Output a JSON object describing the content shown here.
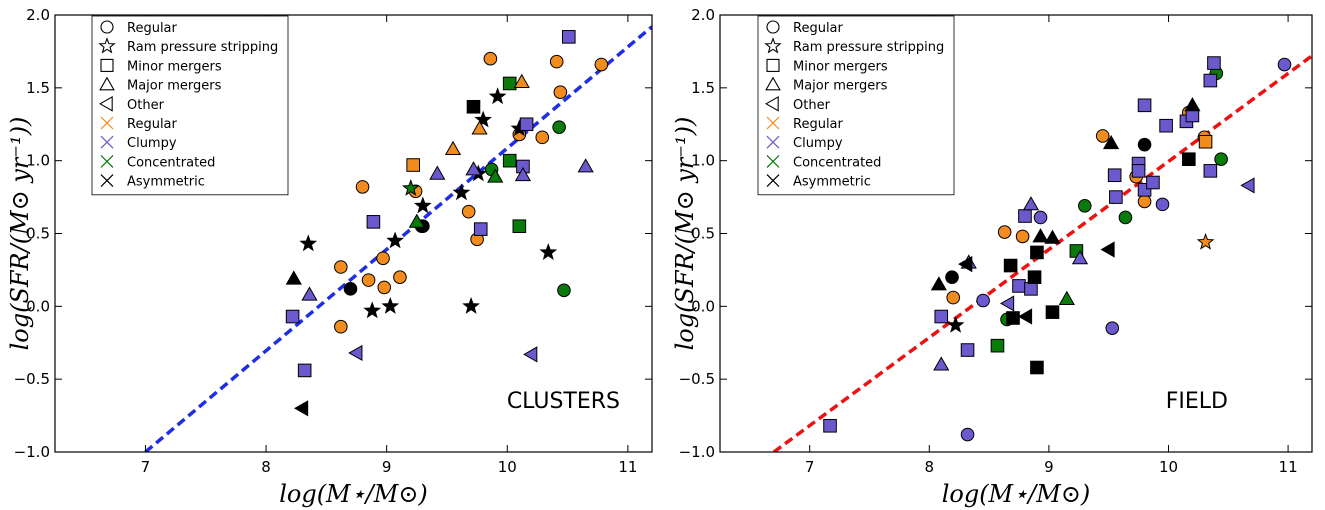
{
  "colors": {
    "Regular": "#f28c1e",
    "Clumpy": "#6a5acd",
    "Concentrated": "#0a7a0a",
    "Asymmetric": "#000000",
    "fit_clusters": "#1f2ee6",
    "fit_field": "#ee1111"
  },
  "chart_data": [
    {
      "type": "scatter",
      "panel_label": "CLUSTERS",
      "xlabel": "log(M⋆/M⊙)",
      "ylabel": "log(SFR/(M⊙ yr⁻¹))",
      "xlim": [
        6.25,
        11.2
      ],
      "ylim": [
        -1.0,
        2.0
      ],
      "xticks": [
        "7",
        "8",
        "9",
        "10",
        "11"
      ],
      "yticks": [
        "−1.0",
        "−0.5",
        "0.0",
        "0.5",
        "1.0",
        "1.5",
        "2.0"
      ],
      "grid": false,
      "legend": {
        "placement": "top-left",
        "entries": [
          {
            "label": "Regular",
            "marker": "circle",
            "color": "#000000"
          },
          {
            "label": "Ram pressure stripping",
            "marker": "star",
            "color": "#000000"
          },
          {
            "label": "Minor mergers",
            "marker": "square",
            "color": "#000000"
          },
          {
            "label": "Major mergers",
            "marker": "triangle-up",
            "color": "#000000"
          },
          {
            "label": "Other",
            "marker": "triangle-left",
            "color": "#000000"
          },
          {
            "label": "Regular",
            "marker": "x",
            "color": "#f28c1e"
          },
          {
            "label": "Clumpy",
            "marker": "x",
            "color": "#6a5acd"
          },
          {
            "label": "Concentrated",
            "marker": "x",
            "color": "#0a7a0a"
          },
          {
            "label": "Asymmetric",
            "marker": "x",
            "color": "#000000"
          }
        ]
      },
      "fit_line": {
        "color": "#1f2ee6",
        "style": "dashed",
        "from": [
          7.0,
          -1.0
        ],
        "to": [
          11.2,
          1.92
        ]
      },
      "points": [
        {
          "x": 8.62,
          "y": 0.27,
          "m": "circle",
          "c": "Regular"
        },
        {
          "x": 8.62,
          "y": -0.14,
          "m": "circle",
          "c": "Regular"
        },
        {
          "x": 8.8,
          "y": 0.82,
          "m": "circle",
          "c": "Regular"
        },
        {
          "x": 8.85,
          "y": 0.18,
          "m": "circle",
          "c": "Regular"
        },
        {
          "x": 8.97,
          "y": 0.33,
          "m": "circle",
          "c": "Regular"
        },
        {
          "x": 8.98,
          "y": 0.13,
          "m": "circle",
          "c": "Regular"
        },
        {
          "x": 9.11,
          "y": 0.2,
          "m": "circle",
          "c": "Regular"
        },
        {
          "x": 9.24,
          "y": 0.79,
          "m": "circle",
          "c": "Regular"
        },
        {
          "x": 9.29,
          "y": 0.55,
          "m": "circle",
          "c": "Regular"
        },
        {
          "x": 9.68,
          "y": 0.65,
          "m": "circle",
          "c": "Regular"
        },
        {
          "x": 9.75,
          "y": 0.46,
          "m": "circle",
          "c": "Regular"
        },
        {
          "x": 9.86,
          "y": 1.7,
          "m": "circle",
          "c": "Regular"
        },
        {
          "x": 10.1,
          "y": 1.18,
          "m": "circle",
          "c": "Regular"
        },
        {
          "x": 10.29,
          "y": 1.16,
          "m": "circle",
          "c": "Regular"
        },
        {
          "x": 10.41,
          "y": 1.68,
          "m": "circle",
          "c": "Regular"
        },
        {
          "x": 10.44,
          "y": 1.47,
          "m": "circle",
          "c": "Regular"
        },
        {
          "x": 10.78,
          "y": 1.66,
          "m": "circle",
          "c": "Regular"
        },
        {
          "x": 8.7,
          "y": 0.12,
          "m": "circle",
          "c": "Asymmetric"
        },
        {
          "x": 9.3,
          "y": 0.55,
          "m": "circle",
          "c": "Asymmetric"
        },
        {
          "x": 9.87,
          "y": 0.94,
          "m": "circle",
          "c": "Concentrated"
        },
        {
          "x": 10.43,
          "y": 1.23,
          "m": "circle",
          "c": "Concentrated"
        },
        {
          "x": 10.47,
          "y": 0.11,
          "m": "circle",
          "c": "Concentrated"
        },
        {
          "x": 8.35,
          "y": 0.43,
          "m": "star",
          "c": "Asymmetric"
        },
        {
          "x": 8.88,
          "y": -0.03,
          "m": "star",
          "c": "Asymmetric"
        },
        {
          "x": 9.03,
          "y": 0.0,
          "m": "star",
          "c": "Asymmetric"
        },
        {
          "x": 9.07,
          "y": 0.45,
          "m": "star",
          "c": "Asymmetric"
        },
        {
          "x": 9.3,
          "y": 0.69,
          "m": "star",
          "c": "Asymmetric"
        },
        {
          "x": 9.62,
          "y": 0.78,
          "m": "star",
          "c": "Asymmetric"
        },
        {
          "x": 9.7,
          "y": 0.0,
          "m": "star",
          "c": "Asymmetric"
        },
        {
          "x": 9.76,
          "y": 0.91,
          "m": "star",
          "c": "Asymmetric"
        },
        {
          "x": 9.8,
          "y": 1.28,
          "m": "star",
          "c": "Asymmetric"
        },
        {
          "x": 9.92,
          "y": 1.44,
          "m": "star",
          "c": "Asymmetric"
        },
        {
          "x": 10.1,
          "y": 1.22,
          "m": "star",
          "c": "Asymmetric"
        },
        {
          "x": 10.34,
          "y": 0.37,
          "m": "star",
          "c": "Asymmetric"
        },
        {
          "x": 9.2,
          "y": 0.81,
          "m": "star",
          "c": "Concentrated"
        },
        {
          "x": 8.22,
          "y": -0.07,
          "m": "square",
          "c": "Clumpy"
        },
        {
          "x": 8.32,
          "y": -0.44,
          "m": "square",
          "c": "Clumpy"
        },
        {
          "x": 8.89,
          "y": 0.58,
          "m": "square",
          "c": "Clumpy"
        },
        {
          "x": 9.78,
          "y": 0.53,
          "m": "square",
          "c": "Clumpy"
        },
        {
          "x": 10.13,
          "y": 0.96,
          "m": "square",
          "c": "Clumpy"
        },
        {
          "x": 10.16,
          "y": 1.25,
          "m": "square",
          "c": "Clumpy"
        },
        {
          "x": 10.51,
          "y": 1.85,
          "m": "square",
          "c": "Clumpy"
        },
        {
          "x": 9.22,
          "y": 0.97,
          "m": "square",
          "c": "Regular"
        },
        {
          "x": 9.72,
          "y": 1.37,
          "m": "square",
          "c": "Asymmetric"
        },
        {
          "x": 10.02,
          "y": 1.53,
          "m": "square",
          "c": "Concentrated"
        },
        {
          "x": 10.02,
          "y": 1.0,
          "m": "square",
          "c": "Concentrated"
        },
        {
          "x": 10.1,
          "y": 0.55,
          "m": "square",
          "c": "Concentrated"
        },
        {
          "x": 8.23,
          "y": 0.19,
          "m": "triangle-up",
          "c": "Asymmetric"
        },
        {
          "x": 8.36,
          "y": 0.08,
          "m": "triangle-up",
          "c": "Clumpy"
        },
        {
          "x": 9.42,
          "y": 0.91,
          "m": "triangle-up",
          "c": "Clumpy"
        },
        {
          "x": 9.72,
          "y": 0.94,
          "m": "triangle-up",
          "c": "Clumpy"
        },
        {
          "x": 10.13,
          "y": 0.9,
          "m": "triangle-up",
          "c": "Clumpy"
        },
        {
          "x": 10.65,
          "y": 0.96,
          "m": "triangle-up",
          "c": "Clumpy"
        },
        {
          "x": 9.55,
          "y": 1.08,
          "m": "triangle-up",
          "c": "Regular"
        },
        {
          "x": 9.77,
          "y": 1.22,
          "m": "triangle-up",
          "c": "Regular"
        },
        {
          "x": 10.12,
          "y": 1.54,
          "m": "triangle-up",
          "c": "Regular"
        },
        {
          "x": 9.25,
          "y": 0.58,
          "m": "triangle-up",
          "c": "Concentrated"
        },
        {
          "x": 9.9,
          "y": 0.89,
          "m": "triangle-up",
          "c": "Concentrated"
        },
        {
          "x": 8.75,
          "y": -0.32,
          "m": "triangle-left",
          "c": "Clumpy"
        },
        {
          "x": 10.2,
          "y": -0.33,
          "m": "triangle-left",
          "c": "Clumpy"
        },
        {
          "x": 8.3,
          "y": -0.7,
          "m": "triangle-left",
          "c": "Asymmetric"
        }
      ]
    },
    {
      "type": "scatter",
      "panel_label": "FIELD",
      "xlabel": "log(M⋆/M⊙)",
      "ylabel": "log(SFR/(M⊙ yr⁻¹))",
      "xlim": [
        6.25,
        11.2
      ],
      "ylim": [
        -1.0,
        2.0
      ],
      "xticks": [
        "7",
        "8",
        "9",
        "10",
        "11"
      ],
      "yticks": [
        "−1.0",
        "−0.5",
        "0.0",
        "0.5",
        "1.0",
        "1.5",
        "2.0"
      ],
      "grid": false,
      "legend": {
        "placement": "top-left",
        "entries": [
          {
            "label": "Regular",
            "marker": "circle",
            "color": "#000000"
          },
          {
            "label": "Ram pressure stripping",
            "marker": "star",
            "color": "#000000"
          },
          {
            "label": "Minor mergers",
            "marker": "square",
            "color": "#000000"
          },
          {
            "label": "Major mergers",
            "marker": "triangle-up",
            "color": "#000000"
          },
          {
            "label": "Other",
            "marker": "triangle-left",
            "color": "#000000"
          },
          {
            "label": "Regular",
            "marker": "x",
            "color": "#f28c1e"
          },
          {
            "label": "Clumpy",
            "marker": "x",
            "color": "#6a5acd"
          },
          {
            "label": "Concentrated",
            "marker": "x",
            "color": "#0a7a0a"
          },
          {
            "label": "Asymmetric",
            "marker": "x",
            "color": "#000000"
          }
        ]
      },
      "fit_line": {
        "color": "#ee1111",
        "style": "dashed",
        "from": [
          6.7,
          -1.0
        ],
        "to": [
          11.2,
          1.72
        ]
      },
      "points": [
        {
          "x": 8.2,
          "y": 0.06,
          "m": "circle",
          "c": "Regular"
        },
        {
          "x": 8.63,
          "y": 0.51,
          "m": "circle",
          "c": "Regular"
        },
        {
          "x": 8.78,
          "y": 0.48,
          "m": "circle",
          "c": "Regular"
        },
        {
          "x": 9.45,
          "y": 1.17,
          "m": "circle",
          "c": "Regular"
        },
        {
          "x": 9.73,
          "y": 0.89,
          "m": "circle",
          "c": "Regular"
        },
        {
          "x": 9.8,
          "y": 0.72,
          "m": "circle",
          "c": "Regular"
        },
        {
          "x": 10.17,
          "y": 1.33,
          "m": "circle",
          "c": "Regular"
        },
        {
          "x": 10.3,
          "y": 1.16,
          "m": "circle",
          "c": "Regular"
        },
        {
          "x": 8.45,
          "y": 0.04,
          "m": "circle",
          "c": "Clumpy"
        },
        {
          "x": 8.32,
          "y": -0.88,
          "m": "circle",
          "c": "Clumpy"
        },
        {
          "x": 8.93,
          "y": 0.61,
          "m": "circle",
          "c": "Clumpy"
        },
        {
          "x": 9.53,
          "y": -0.15,
          "m": "circle",
          "c": "Clumpy"
        },
        {
          "x": 9.95,
          "y": 0.7,
          "m": "circle",
          "c": "Clumpy"
        },
        {
          "x": 10.97,
          "y": 1.66,
          "m": "circle",
          "c": "Clumpy"
        },
        {
          "x": 8.19,
          "y": 0.2,
          "m": "circle",
          "c": "Asymmetric"
        },
        {
          "x": 9.8,
          "y": 1.11,
          "m": "circle",
          "c": "Asymmetric"
        },
        {
          "x": 8.65,
          "y": -0.09,
          "m": "circle",
          "c": "Concentrated"
        },
        {
          "x": 9.3,
          "y": 0.69,
          "m": "circle",
          "c": "Concentrated"
        },
        {
          "x": 9.64,
          "y": 0.61,
          "m": "circle",
          "c": "Concentrated"
        },
        {
          "x": 10.4,
          "y": 1.6,
          "m": "circle",
          "c": "Concentrated"
        },
        {
          "x": 10.44,
          "y": 1.01,
          "m": "circle",
          "c": "Concentrated"
        },
        {
          "x": 8.22,
          "y": -0.13,
          "m": "star",
          "c": "Asymmetric"
        },
        {
          "x": 10.31,
          "y": 0.44,
          "m": "star",
          "c": "Regular"
        },
        {
          "x": 7.17,
          "y": -0.82,
          "m": "square",
          "c": "Clumpy"
        },
        {
          "x": 8.1,
          "y": -0.07,
          "m": "square",
          "c": "Clumpy"
        },
        {
          "x": 8.32,
          "y": -0.3,
          "m": "square",
          "c": "Clumpy"
        },
        {
          "x": 8.75,
          "y": 0.14,
          "m": "square",
          "c": "Clumpy"
        },
        {
          "x": 8.8,
          "y": 0.62,
          "m": "square",
          "c": "Clumpy"
        },
        {
          "x": 8.85,
          "y": 0.12,
          "m": "square",
          "c": "Clumpy"
        },
        {
          "x": 9.55,
          "y": 0.9,
          "m": "square",
          "c": "Clumpy"
        },
        {
          "x": 9.56,
          "y": 0.75,
          "m": "square",
          "c": "Clumpy"
        },
        {
          "x": 9.75,
          "y": 0.98,
          "m": "square",
          "c": "Clumpy"
        },
        {
          "x": 9.75,
          "y": 0.93,
          "m": "square",
          "c": "Clumpy"
        },
        {
          "x": 9.8,
          "y": 1.38,
          "m": "square",
          "c": "Clumpy"
        },
        {
          "x": 9.8,
          "y": 0.8,
          "m": "square",
          "c": "Clumpy"
        },
        {
          "x": 9.87,
          "y": 0.85,
          "m": "square",
          "c": "Clumpy"
        },
        {
          "x": 9.98,
          "y": 1.24,
          "m": "square",
          "c": "Clumpy"
        },
        {
          "x": 10.15,
          "y": 1.27,
          "m": "square",
          "c": "Clumpy"
        },
        {
          "x": 10.2,
          "y": 1.31,
          "m": "square",
          "c": "Clumpy"
        },
        {
          "x": 10.35,
          "y": 1.55,
          "m": "square",
          "c": "Clumpy"
        },
        {
          "x": 10.38,
          "y": 1.67,
          "m": "square",
          "c": "Clumpy"
        },
        {
          "x": 10.35,
          "y": 0.93,
          "m": "square",
          "c": "Clumpy"
        },
        {
          "x": 10.31,
          "y": 1.13,
          "m": "square",
          "c": "Regular"
        },
        {
          "x": 8.68,
          "y": 0.28,
          "m": "square",
          "c": "Asymmetric"
        },
        {
          "x": 8.7,
          "y": -0.08,
          "m": "square",
          "c": "Asymmetric"
        },
        {
          "x": 8.88,
          "y": 0.2,
          "m": "square",
          "c": "Asymmetric"
        },
        {
          "x": 8.9,
          "y": 0.37,
          "m": "square",
          "c": "Asymmetric"
        },
        {
          "x": 8.9,
          "y": -0.42,
          "m": "square",
          "c": "Asymmetric"
        },
        {
          "x": 9.03,
          "y": -0.04,
          "m": "square",
          "c": "Asymmetric"
        },
        {
          "x": 10.17,
          "y": 1.01,
          "m": "square",
          "c": "Asymmetric"
        },
        {
          "x": 8.57,
          "y": -0.27,
          "m": "square",
          "c": "Concentrated"
        },
        {
          "x": 9.23,
          "y": 0.38,
          "m": "square",
          "c": "Concentrated"
        },
        {
          "x": 8.1,
          "y": -0.4,
          "m": "triangle-up",
          "c": "Clumpy"
        },
        {
          "x": 8.33,
          "y": 0.3,
          "m": "triangle-up",
          "c": "Clumpy"
        },
        {
          "x": 8.85,
          "y": 0.7,
          "m": "triangle-up",
          "c": "Clumpy"
        },
        {
          "x": 9.26,
          "y": 0.33,
          "m": "triangle-up",
          "c": "Clumpy"
        },
        {
          "x": 8.08,
          "y": 0.15,
          "m": "triangle-up",
          "c": "Asymmetric"
        },
        {
          "x": 8.93,
          "y": 0.48,
          "m": "triangle-up",
          "c": "Asymmetric"
        },
        {
          "x": 9.03,
          "y": 0.47,
          "m": "triangle-up",
          "c": "Asymmetric"
        },
        {
          "x": 9.52,
          "y": 1.12,
          "m": "triangle-up",
          "c": "Asymmetric"
        },
        {
          "x": 10.2,
          "y": 1.38,
          "m": "triangle-up",
          "c": "Asymmetric"
        },
        {
          "x": 9.15,
          "y": 0.05,
          "m": "triangle-up",
          "c": "Concentrated"
        },
        {
          "x": 8.66,
          "y": 0.02,
          "m": "triangle-left",
          "c": "Clumpy"
        },
        {
          "x": 10.67,
          "y": 0.83,
          "m": "triangle-left",
          "c": "Clumpy"
        },
        {
          "x": 8.31,
          "y": 0.29,
          "m": "triangle-left",
          "c": "Asymmetric"
        },
        {
          "x": 8.81,
          "y": -0.07,
          "m": "triangle-left",
          "c": "Asymmetric"
        },
        {
          "x": 9.5,
          "y": 0.39,
          "m": "triangle-left",
          "c": "Asymmetric"
        }
      ]
    }
  ]
}
